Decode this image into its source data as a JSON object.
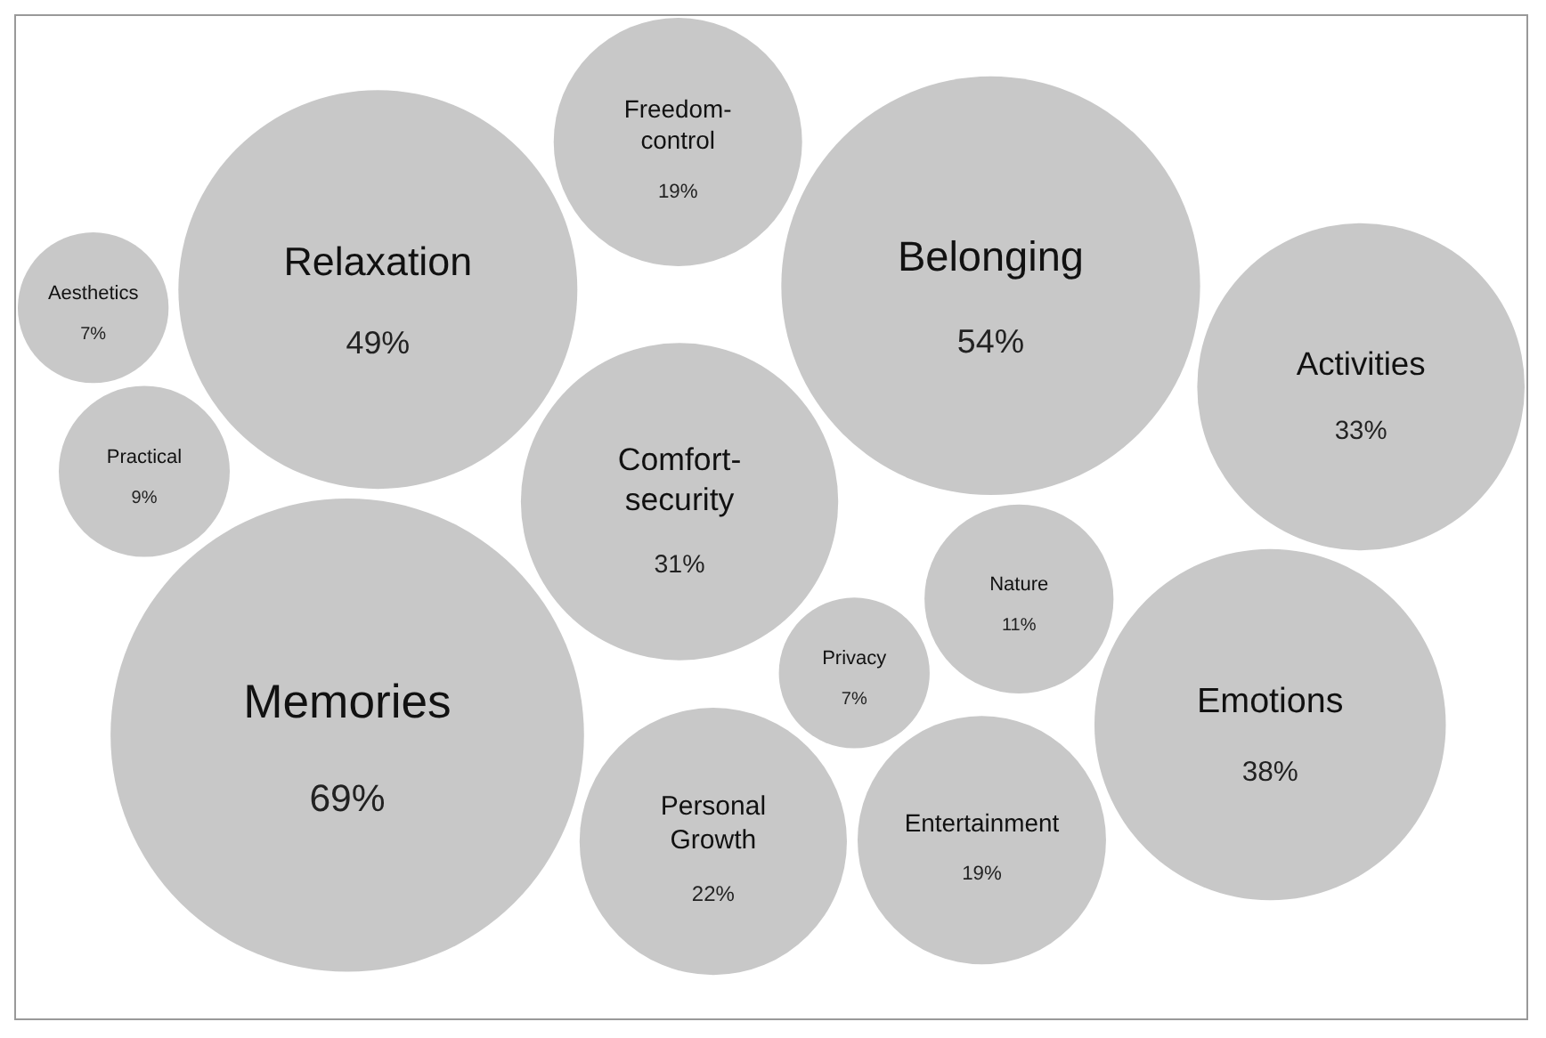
{
  "chart_data": {
    "type": "other",
    "color": "#c8c8c8",
    "categories": [
      "Aesthetics",
      "Relaxation",
      "Freedom-control",
      "Belonging",
      "Activities",
      "Practical",
      "Comfort-security",
      "Privacy",
      "Nature",
      "Emotions",
      "Memories",
      "Personal Growth",
      "Entertainment"
    ],
    "values": [
      7,
      49,
      19,
      54,
      33,
      9,
      31,
      7,
      11,
      38,
      69,
      22,
      19
    ],
    "value_labels": [
      "7%",
      "49%",
      "19%",
      "54%",
      "33%",
      "9%",
      "31%",
      "7%",
      "11%",
      "38%",
      "69%",
      "22%",
      "19%"
    ]
  }
}
